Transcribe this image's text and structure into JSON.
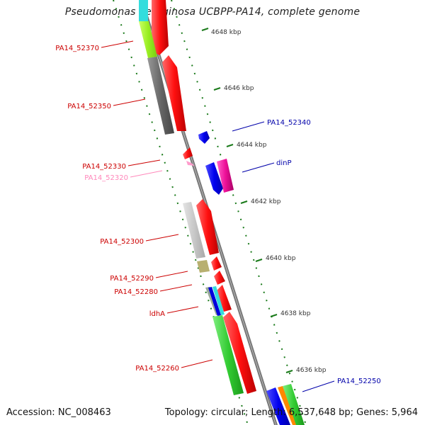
{
  "title": "Pseudomonas aeruginosa UCBPP-PA14, complete genome",
  "footer": {
    "accession": "Accession: NC_008463",
    "topology": "Topology: circular; Length: 6,537,648 bp; Genes: 5,964"
  },
  "ticks": [
    {
      "label": "4648 kbp"
    },
    {
      "label": "4646 kbp"
    },
    {
      "label": "4644 kbp"
    },
    {
      "label": "4642 kbp"
    },
    {
      "label": "4640 kbp"
    },
    {
      "label": "4638 kbp"
    },
    {
      "label": "4636 kbp"
    }
  ],
  "gene_labels": [
    {
      "text": "PA14_52370",
      "color": "#cc0000"
    },
    {
      "text": "PA14_52350",
      "color": "#cc0000"
    },
    {
      "text": "PA14_52340",
      "color": "#0000aa"
    },
    {
      "text": "PA14_52330",
      "color": "#cc0000"
    },
    {
      "text": "dinP",
      "color": "#0000aa"
    },
    {
      "text": "PA14_52320",
      "color": "#ff88bb"
    },
    {
      "text": "PA14_52300",
      "color": "#cc0000"
    },
    {
      "text": "PA14_52290",
      "color": "#cc0000"
    },
    {
      "text": "PA14_52280",
      "color": "#cc0000"
    },
    {
      "text": "ldhA",
      "color": "#cc0000"
    },
    {
      "text": "PA14_52260",
      "color": "#cc0000"
    },
    {
      "text": "PA14_52250",
      "color": "#0000aa"
    }
  ]
}
